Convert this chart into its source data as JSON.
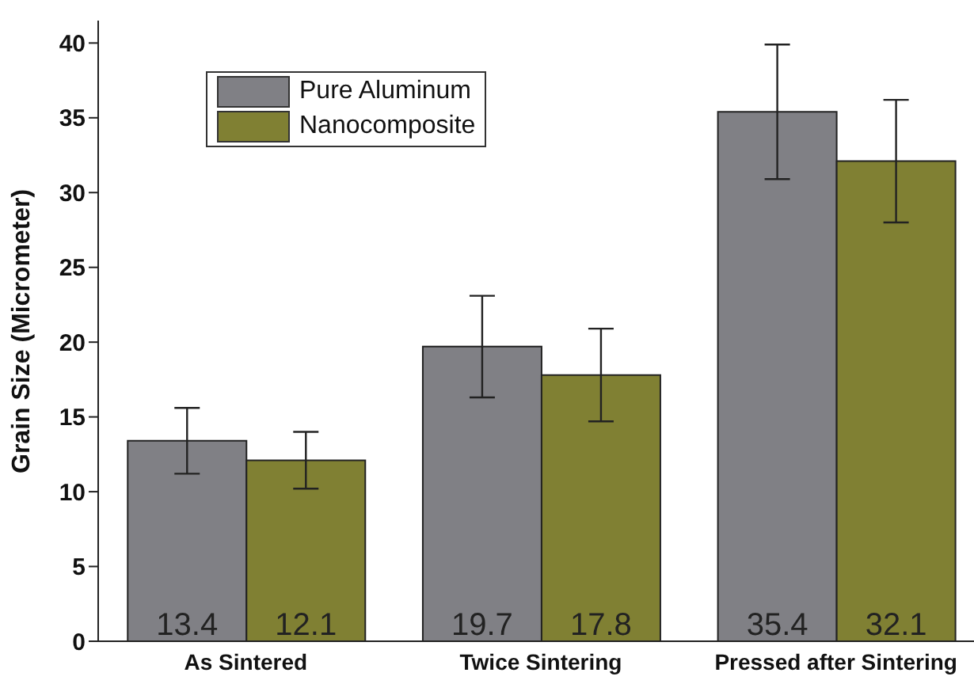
{
  "chart_data": {
    "type": "bar",
    "ylabel": "Grain Size (Micrometer)",
    "categories": [
      "As Sintered",
      "Twice Sintering",
      "Pressed after Sintering"
    ],
    "series": [
      {
        "name": "Pure Aluminum",
        "color": "#808085",
        "values": [
          13.4,
          19.7,
          35.4
        ],
        "errors": [
          2.2,
          3.4,
          4.5
        ]
      },
      {
        "name": "Nanocomposite",
        "color": "#808033",
        "values": [
          12.1,
          17.8,
          32.1
        ],
        "errors": [
          1.9,
          3.1,
          4.1
        ]
      }
    ],
    "ylim": [
      0,
      41.5
    ],
    "yticks": [
      0,
      5,
      10,
      15,
      20,
      25,
      30,
      35,
      40
    ],
    "data_labels": true,
    "legend": "top left",
    "grid": false
  }
}
